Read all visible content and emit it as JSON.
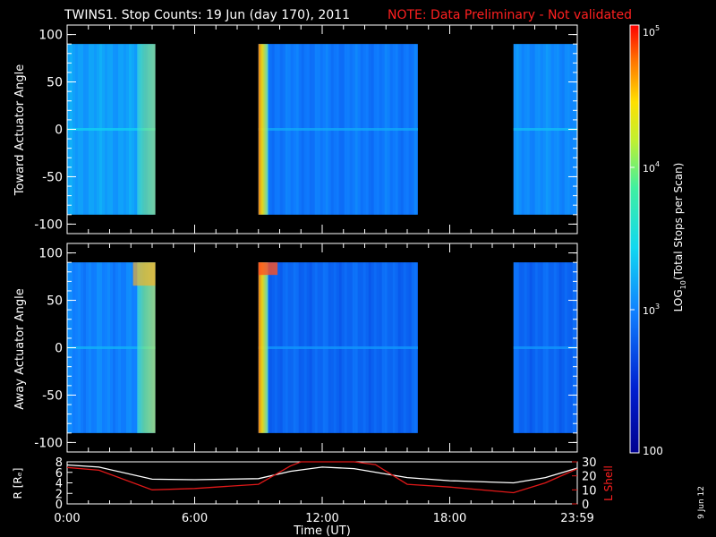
{
  "title_main": "TWINS1. Stop Counts: 19 Jun (day 170), 2011",
  "title_note": "NOTE: Data Preliminary - Not validated",
  "date_stamp": "9 Jun 12",
  "colors": {
    "background": "#000000",
    "axes": "#ffffff",
    "note": "#ff2020",
    "l_shell_line": "#e01818",
    "r_line": "#ffffff"
  },
  "chart_data": [
    {
      "type": "heatmap",
      "panel": "top",
      "ylabel": "Toward Actuator Angle",
      "ylim": [
        -110,
        110
      ],
      "yticks": [
        100,
        50,
        0,
        -50,
        -100
      ],
      "ytick_labels": [
        "100",
        "50",
        "0",
        "-50",
        "-100"
      ],
      "xlim_hours": [
        0,
        24
      ],
      "data_extent_deg": [
        -90,
        90
      ],
      "blocks": [
        {
          "start_hour": 0.0,
          "end_hour": 4.15,
          "level_log10": 3.15,
          "note": "cyan, greenish bands near 3.3-4.1 h"
        },
        {
          "start_hour": 9.0,
          "end_hour": 16.5,
          "level_log10": 2.95,
          "note": "light blue, red/orange edge at 9.0-9.3 h"
        },
        {
          "start_hour": 21.0,
          "end_hour": 24.0,
          "level_log10": 3.05,
          "note": "cyan-blue"
        }
      ]
    },
    {
      "type": "heatmap",
      "panel": "middle",
      "ylabel": "Away Actuator Angle",
      "ylim": [
        -110,
        110
      ],
      "yticks": [
        100,
        50,
        0,
        -50,
        -100
      ],
      "ytick_labels": [
        "100",
        "50",
        "0",
        "-50",
        "-100"
      ],
      "xlim_hours": [
        0,
        24
      ],
      "data_extent_deg": [
        -90,
        90
      ],
      "blocks": [
        {
          "start_hour": 0.0,
          "end_hour": 4.15,
          "level_log10": 3.0,
          "note": "blue-cyan, yellow/orange near top 3.3-4.1 h"
        },
        {
          "start_hour": 9.0,
          "end_hour": 16.5,
          "level_log10": 2.85,
          "note": "blue, red/orange edge at 9.0-9.3 h top"
        },
        {
          "start_hour": 21.0,
          "end_hour": 24.0,
          "level_log10": 2.85,
          "note": "blue"
        }
      ]
    },
    {
      "type": "line",
      "panel": "bottom",
      "ylabel_left": "R [Rₑ]",
      "ylabel_right": "L Shell",
      "ylim_left": [
        0,
        8
      ],
      "yticks_left": [
        "8",
        "6",
        "4",
        "2",
        "0"
      ],
      "ylim_right": [
        0,
        30
      ],
      "yticks_right": [
        "30",
        "20",
        "10",
        "0"
      ],
      "xlabel": "Time (UT)",
      "xticks": [
        "0:00",
        "6:00",
        "12:00",
        "18:00",
        "23:59"
      ],
      "xtick_hours": [
        0,
        6,
        12,
        18,
        24
      ],
      "series": [
        {
          "axis": "left",
          "x": [
            0,
            1.5,
            4,
            6,
            9,
            10.5,
            12,
            13.5,
            16,
            18,
            21,
            22.5,
            24
          ],
          "y": [
            7.4,
            7.0,
            4.7,
            4.6,
            4.8,
            6.2,
            7.0,
            6.7,
            5.0,
            4.4,
            4.0,
            5.0,
            6.8
          ]
        },
        {
          "axis": "right",
          "x": [
            0,
            1.5,
            4,
            6,
            9,
            10.5,
            11.0,
            12,
            13.5,
            14.5,
            16,
            18,
            21,
            22.5,
            24
          ],
          "y": [
            26,
            24,
            10,
            11,
            14,
            27,
            30,
            30,
            30,
            28,
            14,
            12,
            8,
            15,
            25
          ]
        }
      ]
    }
  ],
  "colorbar": {
    "label_prefix": "LOG",
    "label_sub": "10",
    "label_suffix": "(Total Stops per Scan)",
    "tick_top": "10",
    "tick_top_exp": "5",
    "tick_mid_upper": "10",
    "tick_mid_upper_exp": "4",
    "tick_mid_lower": "10",
    "tick_mid_lower_exp": "3",
    "tick_bottom": "100",
    "range_log10": [
      2,
      5
    ]
  }
}
